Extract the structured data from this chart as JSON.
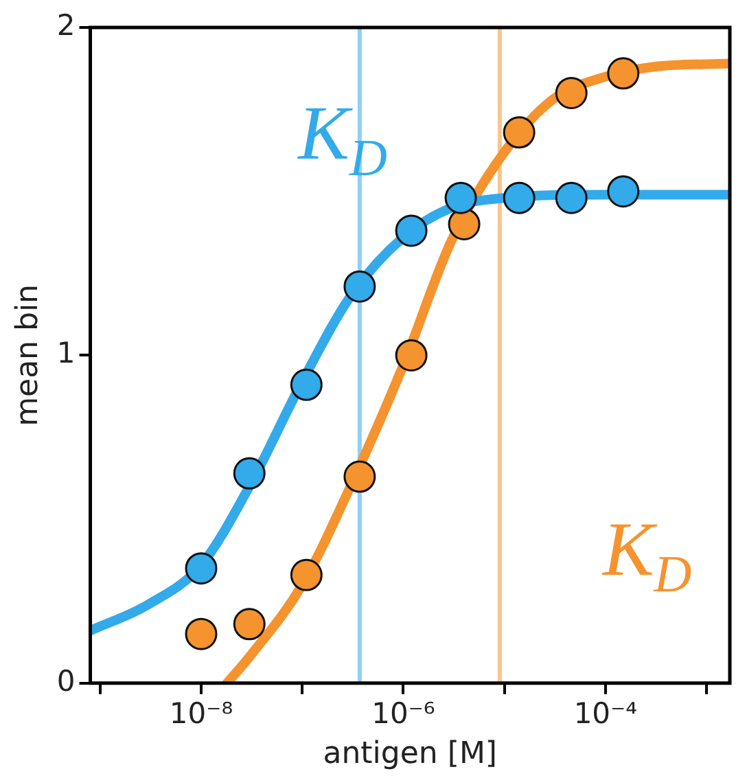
{
  "chart_data": {
    "type": "scatter",
    "xlabel": "antigen [M]",
    "ylabel": "mean bin",
    "log": "x",
    "xlim": [
      8e-10,
      0.0017
    ],
    "ylim": [
      0,
      2
    ],
    "xticks": [
      {
        "value": 1e-09,
        "label": null
      },
      {
        "value": 1e-08,
        "label": "10⁻⁸"
      },
      {
        "value": 1e-07,
        "label": null
      },
      {
        "value": 1e-06,
        "label": "10⁻⁶"
      },
      {
        "value": 1e-05,
        "label": null
      },
      {
        "value": 0.0001,
        "label": "10⁻⁴"
      },
      {
        "value": 0.001,
        "label": null
      }
    ],
    "yticks": [
      0,
      1,
      2
    ],
    "grid": false,
    "legend": false,
    "series": [
      {
        "type": "line",
        "marker": "none",
        "color": "#33aaea",
        "x": [
          8e-10,
          3e-09,
          1e-08,
          3e-08,
          1e-07,
          3e-07,
          1e-06,
          3e-06,
          1e-05,
          0.0001,
          0.0017
        ],
        "values": [
          0.16,
          0.24,
          0.36,
          0.6,
          0.92,
          1.18,
          1.36,
          1.45,
          1.48,
          1.49,
          1.49
        ]
      },
      {
        "type": "line",
        "marker": "none",
        "color": "#f5932f",
        "x": [
          1.8e-08,
          3e-08,
          1e-07,
          3e-07,
          1e-06,
          3e-06,
          1e-05,
          3e-05,
          0.0001,
          0.0003,
          0.0017
        ],
        "values": [
          0,
          0.08,
          0.3,
          0.6,
          0.97,
          1.35,
          1.62,
          1.78,
          1.85,
          1.88,
          1.89
        ]
      },
      {
        "type": "scatter",
        "marker": "circle",
        "color": "#33aaea",
        "x": [
          1e-08,
          3e-08,
          1.1e-07,
          3.7e-07,
          1.2e-06,
          3.7e-06,
          1.4e-05,
          4.6e-05,
          0.00015
        ],
        "values": [
          0.35,
          0.64,
          0.91,
          1.21,
          1.38,
          1.48,
          1.48,
          1.48,
          1.5
        ]
      },
      {
        "type": "scatter",
        "marker": "circle",
        "color": "#f5932f",
        "x": [
          1e-08,
          3e-08,
          1.1e-07,
          3.7e-07,
          1.2e-06,
          4e-06,
          1.4e-05,
          4.6e-05,
          0.00015
        ],
        "values": [
          0.15,
          0.18,
          0.33,
          0.63,
          1.0,
          1.4,
          1.68,
          1.8,
          1.86
        ]
      }
    ],
    "ref_lines": [
      {
        "axis": "x",
        "value": 3.7e-07,
        "label": "K$_{D}$",
        "color": "#33aaea"
      },
      {
        "axis": "x",
        "value": 9e-06,
        "label": "K$_{D}$",
        "color": "#f5932f"
      }
    ]
  }
}
